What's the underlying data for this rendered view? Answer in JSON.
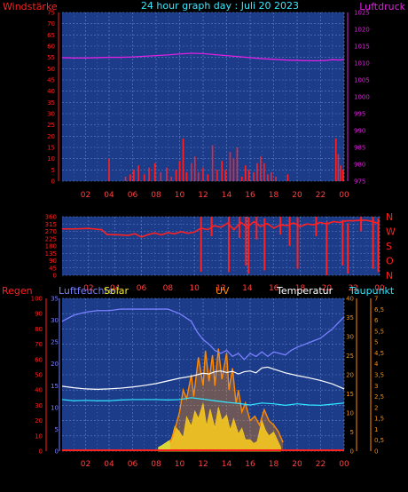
{
  "header": {
    "left": "Windstärke",
    "title": "24 hour graph day : Juli 20 2023",
    "right": "Luftdruck"
  },
  "row3_labels": {
    "regen": "Regen",
    "luftfeuchte": "Luftfeuchte",
    "solar": "Solar",
    "uv": "UV",
    "temperatur": "Temperatur",
    "taupunkt": "Taupunkt"
  },
  "colors": {
    "panel_bg": "#1c3c8a",
    "grid": "#5b7fc4",
    "red": "#ff2020",
    "magenta": "#e020e0",
    "cyan": "#30e8ff",
    "white": "#ffffff",
    "yellow": "#f0e830",
    "orange": "#ff8a00",
    "humidity": "#7a80ff",
    "x_ticks": "#ff4040"
  },
  "chart_data": [
    {
      "type": "line",
      "title": "24 hour graph day : Juli 20 2023",
      "xlabel": "",
      "x_ticks": [
        "02",
        "04",
        "06",
        "08",
        "10",
        "12",
        "14",
        "16",
        "18",
        "20",
        "22",
        "00"
      ],
      "y_left": {
        "name": "Windstärke",
        "ticks": [
          0,
          5,
          10,
          15,
          20,
          25,
          30,
          35,
          40,
          45,
          50,
          55,
          60,
          65,
          70,
          75
        ],
        "range": [
          0,
          75
        ]
      },
      "y_right": {
        "name": "Luftdruck",
        "ticks": [
          975,
          980,
          985,
          990,
          995,
          1000,
          1005,
          1010,
          1015,
          1020,
          1025
        ],
        "range": [
          975,
          1025
        ]
      },
      "series": [
        {
          "name": "Luftdruck",
          "axis": "right",
          "x": [
            0,
            1,
            2,
            3,
            4,
            5,
            6,
            7,
            8,
            9,
            10,
            11,
            12,
            13,
            14,
            15,
            16,
            17,
            18,
            19,
            20,
            21,
            22,
            22.5,
            23,
            23.5,
            24
          ],
          "y": [
            1011.6,
            1011.5,
            1011.5,
            1011.6,
            1011.7,
            1011.7,
            1011.8,
            1012.0,
            1012.2,
            1012.4,
            1012.7,
            1012.9,
            1012.8,
            1012.5,
            1012.2,
            1011.9,
            1011.6,
            1011.3,
            1011.1,
            1010.9,
            1010.8,
            1010.7,
            1010.7,
            1010.8,
            1011.0,
            1010.9,
            1011.0
          ]
        },
        {
          "name": "Windstärke",
          "axis": "left",
          "gusts": [
            [
              4.0,
              10
            ],
            [
              5.4,
              2
            ],
            [
              5.8,
              3
            ],
            [
              6.1,
              5
            ],
            [
              6.5,
              7
            ],
            [
              7.0,
              3
            ],
            [
              7.4,
              6
            ],
            [
              7.9,
              8
            ],
            [
              8.4,
              4
            ],
            [
              8.9,
              6
            ],
            [
              9.3,
              2
            ],
            [
              9.7,
              5
            ],
            [
              10.0,
              9
            ],
            [
              10.3,
              19
            ],
            [
              10.6,
              4
            ],
            [
              11.0,
              8
            ],
            [
              11.3,
              11
            ],
            [
              11.6,
              4
            ],
            [
              12.0,
              6
            ],
            [
              12.4,
              3
            ],
            [
              12.8,
              16
            ],
            [
              13.2,
              5
            ],
            [
              13.6,
              9
            ],
            [
              13.9,
              5
            ],
            [
              14.3,
              13
            ],
            [
              14.6,
              10
            ],
            [
              14.9,
              15
            ],
            [
              15.3,
              2
            ],
            [
              15.6,
              7
            ],
            [
              15.9,
              5
            ],
            [
              16.3,
              4
            ],
            [
              16.6,
              8
            ],
            [
              16.9,
              11
            ],
            [
              17.2,
              8
            ],
            [
              17.5,
              3
            ],
            [
              17.8,
              4
            ],
            [
              18.2,
              2
            ],
            [
              19.2,
              3
            ],
            [
              23.3,
              19
            ],
            [
              23.5,
              12
            ],
            [
              23.7,
              7
            ],
            [
              23.9,
              5
            ]
          ]
        }
      ]
    },
    {
      "type": "line",
      "title": "",
      "y_left": {
        "ticks": [
          0,
          45,
          90,
          135,
          180,
          225,
          270,
          315,
          360
        ],
        "range": [
          0,
          360
        ]
      },
      "y_right": {
        "labels": [
          "N",
          "W",
          "S",
          "O",
          "N"
        ]
      },
      "x_ticks": [
        "02",
        "04",
        "06",
        "08",
        "10",
        "12",
        "14",
        "16",
        "18",
        "20",
        "22",
        "00"
      ],
      "series": [
        {
          "name": "Windrichtung",
          "x": [
            0,
            1,
            2,
            3,
            3.4,
            4,
            5,
            5.5,
            6,
            6.5,
            7,
            7.5,
            8,
            8.5,
            9,
            9.5,
            10,
            10.5,
            11,
            11.5,
            12,
            12.5,
            13,
            13.5,
            14,
            14.5,
            15,
            15.5,
            16,
            16.5,
            17,
            17.5,
            18,
            18.5,
            19,
            19.5,
            20,
            20.5,
            21,
            21.5,
            22,
            22.5,
            23,
            23.5,
            24
          ],
          "y": [
            285,
            285,
            288,
            280,
            250,
            250,
            245,
            255,
            235,
            250,
            260,
            248,
            262,
            255,
            268,
            258,
            265,
            290,
            280,
            305,
            295,
            320,
            280,
            325,
            295,
            330,
            300,
            318,
            290,
            310,
            305,
            322,
            300,
            315,
            310,
            325,
            315,
            330,
            325,
            335,
            335,
            338,
            338,
            330,
            315
          ]
        }
      ],
      "spikes": [
        [
          10.5,
          22,
          360
        ],
        [
          11.3,
          240,
          360
        ],
        [
          12.6,
          20,
          360
        ],
        [
          13.4,
          230,
          360
        ],
        [
          13.9,
          60,
          360
        ],
        [
          14.1,
          10,
          355
        ],
        [
          14.7,
          220,
          360
        ],
        [
          15.3,
          30,
          350
        ],
        [
          16.5,
          250,
          360
        ],
        [
          17.2,
          180,
          360
        ],
        [
          17.8,
          40,
          355
        ],
        [
          19.2,
          240,
          360
        ],
        [
          20.0,
          0,
          330
        ],
        [
          21.2,
          60,
          340
        ],
        [
          21.6,
          10,
          320
        ],
        [
          22.6,
          270,
          360
        ],
        [
          23.5,
          40,
          360
        ],
        [
          23.9,
          20,
          350
        ]
      ]
    },
    {
      "type": "line",
      "title": "",
      "x_ticks": [
        "02",
        "04",
        "06",
        "08",
        "10",
        "12",
        "14",
        "16",
        "18",
        "20",
        "22",
        "00"
      ],
      "y_regen": {
        "name": "Regen",
        "ticks": [
          0,
          10,
          20,
          30,
          40,
          50,
          60,
          70,
          80,
          90,
          100
        ],
        "range": [
          0,
          100
        ]
      },
      "y_luftfeuchte": {
        "name": "Luftfeuchte",
        "ticks": [
          0,
          5,
          10,
          15,
          20,
          25,
          30,
          35
        ],
        "range": [
          0,
          35
        ]
      },
      "y_temperatur": {
        "name": "Temperatur",
        "ticks": [
          0,
          5,
          10,
          15,
          20,
          25,
          30,
          35,
          40
        ],
        "range": [
          0,
          40
        ]
      },
      "y_uv": {
        "name": "UV",
        "ticks": [
          "0",
          "0,5",
          "1",
          "1,5",
          "2",
          "2,5",
          "3",
          "3,5",
          "4",
          "4,5",
          "5",
          "5,5",
          "6",
          "6,5",
          "7"
        ],
        "range": [
          0,
          7
        ]
      },
      "series": [
        {
          "name": "Luftfeuchte",
          "x": [
            0,
            1,
            2,
            3,
            4,
            5,
            6,
            7,
            8,
            9,
            10,
            11,
            11.5,
            12,
            12.5,
            13,
            13.5,
            14,
            14.5,
            15,
            15.5,
            16,
            16.5,
            17,
            17.5,
            18,
            18.5,
            19,
            19.5,
            20,
            21,
            22,
            23,
            24
          ],
          "y": [
            85,
            89,
            91,
            92,
            92,
            93,
            93,
            93,
            93,
            93,
            90,
            85,
            78,
            73,
            70,
            66,
            64,
            66,
            62,
            64,
            60,
            64,
            62,
            65,
            62,
            65,
            64,
            63,
            66,
            68,
            71,
            74,
            80,
            88
          ]
        },
        {
          "name": "Temperatur",
          "x": [
            0,
            1,
            2,
            3,
            4,
            5,
            6,
            7,
            8,
            9,
            10,
            11,
            11.5,
            12,
            12.5,
            13,
            13.5,
            14,
            14.5,
            15,
            15.5,
            16,
            16.5,
            17,
            17.5,
            18,
            19,
            20,
            21,
            22,
            23,
            24
          ],
          "y": [
            17.0,
            16.6,
            16.3,
            16.2,
            16.3,
            16.5,
            16.8,
            17.2,
            17.7,
            18.4,
            19.1,
            19.6,
            20.0,
            20.4,
            20.2,
            20.8,
            21.0,
            20.6,
            20.9,
            20.2,
            20.8,
            21.0,
            20.5,
            21.8,
            22.0,
            21.5,
            20.5,
            19.8,
            19.2,
            18.5,
            17.6,
            16.3
          ]
        },
        {
          "name": "Taupunkt",
          "x": [
            0,
            1,
            2,
            3,
            4,
            5,
            6,
            7,
            8,
            9,
            10,
            11,
            12,
            13,
            14,
            15,
            16,
            17,
            18,
            19,
            20,
            21,
            22,
            23,
            24
          ],
          "y": [
            13.5,
            13.2,
            13.3,
            13.2,
            13.2,
            13.4,
            13.5,
            13.5,
            13.5,
            13.4,
            13.5,
            14.0,
            13.6,
            13.2,
            12.8,
            12.5,
            12.1,
            12.6,
            12.4,
            12.0,
            12.4,
            12.1,
            12.0,
            12.3,
            12.6
          ]
        },
        {
          "name": "Solar",
          "x": [
            8.2,
            8.5,
            9,
            9.3,
            9.6,
            10,
            10.3,
            10.6,
            11,
            11.3,
            11.6,
            12,
            12.3,
            12.6,
            13,
            13.3,
            13.6,
            14,
            14.3,
            14.6,
            15,
            15.3,
            15.6,
            16,
            16.3,
            16.6,
            17,
            17.3,
            17.6,
            18,
            18.3,
            18.6
          ],
          "y": [
            1.0,
            1.5,
            2.5,
            3.0,
            6.5,
            5.0,
            3.5,
            9.0,
            6.5,
            10.5,
            8.5,
            12.5,
            6.5,
            11.0,
            6.0,
            11.5,
            8.0,
            9.5,
            5.5,
            8.5,
            4.5,
            6.0,
            3.0,
            3.0,
            2.0,
            2.5,
            8.0,
            5.5,
            4.0,
            5.0,
            3.0,
            1.0
          ]
        },
        {
          "name": "UV",
          "x": [
            9.2,
            9.6,
            10,
            10.3,
            10.6,
            11,
            11.2,
            11.6,
            12,
            12.2,
            12.5,
            12.8,
            13,
            13.3,
            13.6,
            14,
            14.2,
            14.5,
            14.8,
            15,
            15.3,
            15.6,
            16,
            16.4,
            16.8,
            17.2,
            17.6,
            18,
            18.4,
            18.8
          ],
          "y": [
            0.4,
            1.0,
            1.8,
            2.8,
            2.4,
            3.5,
            2.5,
            4.3,
            3.0,
            4.6,
            3.2,
            4.4,
            3.0,
            4.7,
            3.3,
            4.5,
            2.8,
            3.8,
            2.2,
            2.8,
            1.8,
            2.2,
            1.4,
            1.6,
            1.2,
            1.9,
            1.4,
            1.2,
            0.9,
            0.4
          ]
        },
        {
          "name": "Regen",
          "x": [
            0,
            24
          ],
          "y": [
            0,
            0
          ]
        }
      ]
    }
  ]
}
